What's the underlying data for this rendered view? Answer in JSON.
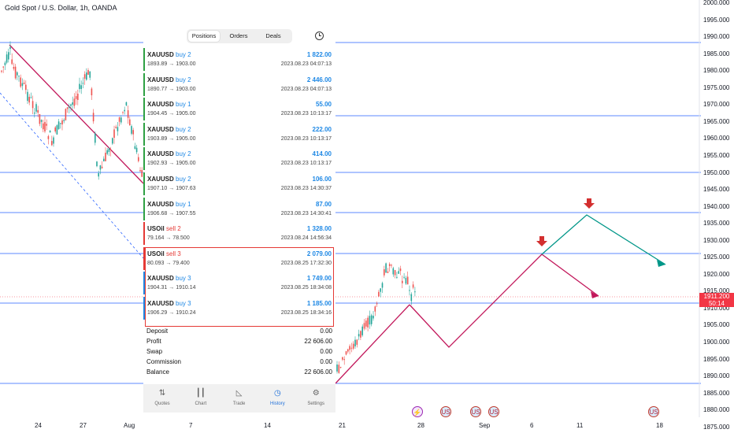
{
  "chart": {
    "title": "Gold Spot / U.S. Dollar, 1h, OANDA",
    "current_price": "1911.200",
    "countdown": "50:14",
    "price_axis": [
      "2000.000",
      "1995.000",
      "1990.000",
      "1985.000",
      "1980.000",
      "1975.000",
      "1970.000",
      "1965.000",
      "1960.000",
      "1955.000",
      "1950.000",
      "1945.000",
      "1940.000",
      "1935.000",
      "1930.000",
      "1925.000",
      "1920.000",
      "1915.000",
      "1910.000",
      "1905.000",
      "1900.000",
      "1895.000",
      "1890.000",
      "1885.000",
      "1880.000",
      "1875.000"
    ],
    "date_axis": [
      "24",
      "27",
      "Aug",
      "7",
      "14",
      "21",
      "28",
      "Sep",
      "6",
      "11",
      "18"
    ],
    "colors": {
      "up": "#26a69a",
      "down": "#ef5350",
      "hline": "#2962ff",
      "trend": "#c2185b",
      "projection_up": "#009688"
    },
    "events": [
      {
        "type": "bolt",
        "glyph": "⚡"
      },
      {
        "type": "us",
        "glyph": "US"
      },
      {
        "type": "us",
        "glyph": "US"
      },
      {
        "type": "us",
        "glyph": "US"
      },
      {
        "type": "us",
        "glyph": "US"
      }
    ]
  },
  "app": {
    "tabs": [
      {
        "label": "Positions",
        "active": true
      },
      {
        "label": "Orders",
        "active": false
      },
      {
        "label": "Deals",
        "active": false
      }
    ],
    "history_icon": "clock-icon",
    "deals": [
      {
        "symbol": "XAUUSD",
        "side": "buy 2",
        "type": "buy",
        "prices": "1893.89 → 1903.00",
        "profit": "1 822.00",
        "time": "2023.08.23 04:07:13"
      },
      {
        "symbol": "XAUUSD",
        "side": "buy 2",
        "type": "buy",
        "prices": "1890.77 → 1903.00",
        "profit": "2 446.00",
        "time": "2023.08.23 04:07:13"
      },
      {
        "symbol": "XAUUSD",
        "side": "buy 1",
        "type": "buy",
        "prices": "1904.45 → 1905.00",
        "profit": "55.00",
        "time": "2023.08.23 10:13:17"
      },
      {
        "symbol": "XAUUSD",
        "side": "buy 2",
        "type": "buy",
        "prices": "1903.89 → 1905.00",
        "profit": "222.00",
        "time": "2023.08.23 10:13:17"
      },
      {
        "symbol": "XAUUSD",
        "side": "buy 2",
        "type": "buy",
        "prices": "1902.93 → 1905.00",
        "profit": "414.00",
        "time": "2023.08.23 10:13:17"
      },
      {
        "symbol": "XAUUSD",
        "side": "buy 2",
        "type": "buy",
        "prices": "1907.10 → 1907.63",
        "profit": "106.00",
        "time": "2023.08.23 14:30:37"
      },
      {
        "symbol": "XAUUSD",
        "side": "buy 1",
        "type": "buy",
        "prices": "1906.68 → 1907.55",
        "profit": "87.00",
        "time": "2023.08.23 14:30:41"
      },
      {
        "symbol": "USOil",
        "side": "sell 2",
        "type": "sell",
        "prices": "79.164 → 78.500",
        "profit": "1 328.00",
        "time": "2023.08.24 14:56:34"
      },
      {
        "symbol": "USOil",
        "side": "sell 3",
        "type": "sell",
        "prices": "80.093 → 79.400",
        "profit": "2 079.00",
        "time": "2023.08.25 17:32:30"
      },
      {
        "symbol": "XAUUSD",
        "side": "buy 3",
        "type": "buy",
        "prices": "1904.31 → 1910.14",
        "profit": "1 749.00",
        "time": "2023.08.25 18:34:08"
      },
      {
        "symbol": "XAUUSD",
        "side": "buy 3",
        "type": "buy",
        "prices": "1906.29 → 1910.24",
        "profit": "1 185.00",
        "time": "2023.08.25 18:34:16"
      }
    ],
    "summary": [
      {
        "label": "Deposit",
        "value": "0.00"
      },
      {
        "label": "Profit",
        "value": "22 606.00"
      },
      {
        "label": "Swap",
        "value": "0.00"
      },
      {
        "label": "Commission",
        "value": "0.00"
      },
      {
        "label": "Balance",
        "value": "22 606.00"
      }
    ],
    "nav": [
      {
        "label": "Quotes",
        "icon": "quotes-icon",
        "glyph": "⇅",
        "active": false
      },
      {
        "label": "Chart",
        "icon": "candles-icon",
        "glyph": "┃┃",
        "active": false
      },
      {
        "label": "Trade",
        "icon": "trade-icon",
        "glyph": "◺",
        "active": false
      },
      {
        "label": "History",
        "icon": "history-icon",
        "glyph": "◷",
        "active": true
      },
      {
        "label": "Settings",
        "icon": "settings-icon",
        "glyph": "⚙",
        "active": false
      }
    ]
  }
}
